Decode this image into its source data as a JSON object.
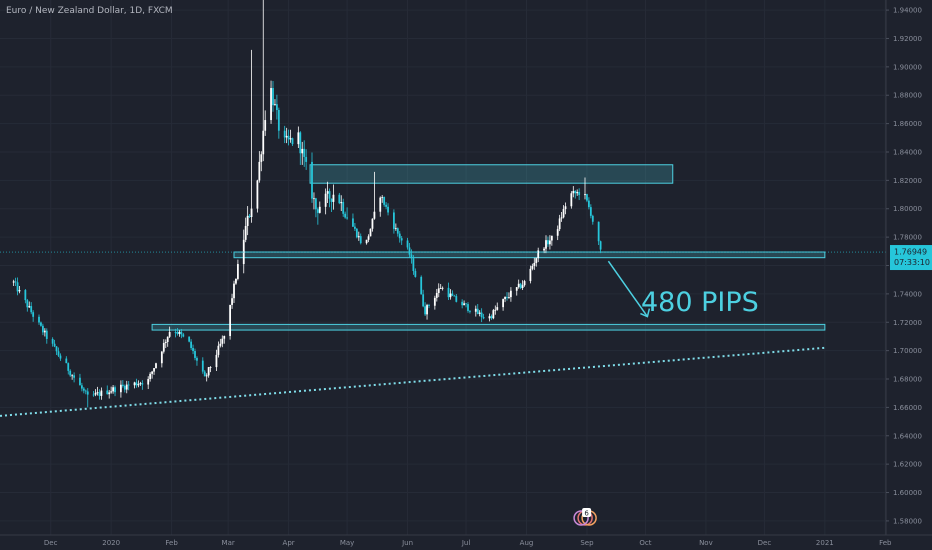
{
  "symbol": {
    "title": "Euro / New Zealand Dollar, 1D, FXCM"
  },
  "price_label": {
    "price": "1.76949",
    "countdown": "07:33:10"
  },
  "annotation": {
    "text": "480 PIPS"
  },
  "notification_badge": {
    "count": "6"
  },
  "colors": {
    "background": "#1e222d",
    "candle_up": "#ffffff",
    "candle_down": "#26c6da",
    "zone": "#4dd0e1",
    "axis_text": "#8a8f9c",
    "label_bg": "#26c6da"
  },
  "chart_data": {
    "type": "candlestick",
    "title": "Euro / New Zealand Dollar, 1D, FXCM",
    "y_axis": {
      "ticks": [
        "1.94000",
        "1.92000",
        "1.90000",
        "1.88000",
        "1.86000",
        "1.84000",
        "1.82000",
        "1.80000",
        "1.78000",
        "1.76000",
        "1.74000",
        "1.72000",
        "1.70000",
        "1.68000",
        "1.66000",
        "1.64000",
        "1.62000",
        "1.60000",
        "1.58000"
      ],
      "range": [
        1.575,
        1.945
      ]
    },
    "x_axis": {
      "ticks": [
        "Dec",
        "2020",
        "Feb",
        "Mar",
        "Apr",
        "May",
        "Jun",
        "Jul",
        "Aug",
        "Sep",
        "Oct",
        "Nov",
        "Dec",
        "2021",
        "Feb"
      ]
    },
    "last_price": 1.76949,
    "price_path": [
      {
        "t": "2019-11-12",
        "p": 1.748
      },
      {
        "t": "2019-11-25",
        "p": 1.718
      },
      {
        "t": "2019-12-05",
        "p": 1.697
      },
      {
        "t": "2019-12-20",
        "p": 1.667
      },
      {
        "t": "2020-01-05",
        "p": 1.674
      },
      {
        "t": "2020-01-20",
        "p": 1.679
      },
      {
        "t": "2020-02-01",
        "p": 1.717
      },
      {
        "t": "2020-02-10",
        "p": 1.705
      },
      {
        "t": "2020-02-18",
        "p": 1.68
      },
      {
        "t": "2020-02-28",
        "p": 1.71
      },
      {
        "t": "2020-03-09",
        "p": 1.78
      },
      {
        "t": "2020-03-16",
        "p": 1.82
      },
      {
        "t": "2020-03-22",
        "p": 1.89
      },
      {
        "t": "2020-03-29",
        "p": 1.845
      },
      {
        "t": "2020-04-06",
        "p": 1.85
      },
      {
        "t": "2020-04-15",
        "p": 1.8
      },
      {
        "t": "2020-04-25",
        "p": 1.812
      },
      {
        "t": "2020-05-03",
        "p": 1.79
      },
      {
        "t": "2020-05-10",
        "p": 1.772
      },
      {
        "t": "2020-05-18",
        "p": 1.81
      },
      {
        "t": "2020-05-26",
        "p": 1.785
      },
      {
        "t": "2020-06-02",
        "p": 1.768
      },
      {
        "t": "2020-06-10",
        "p": 1.728
      },
      {
        "t": "2020-06-18",
        "p": 1.745
      },
      {
        "t": "2020-06-26",
        "p": 1.735
      },
      {
        "t": "2020-07-05",
        "p": 1.728
      },
      {
        "t": "2020-07-12",
        "p": 1.722
      },
      {
        "t": "2020-07-22",
        "p": 1.738
      },
      {
        "t": "2020-07-31",
        "p": 1.748
      },
      {
        "t": "2020-08-08",
        "p": 1.772
      },
      {
        "t": "2020-08-15",
        "p": 1.78
      },
      {
        "t": "2020-08-23",
        "p": 1.81
      },
      {
        "t": "2020-08-30",
        "p": 1.812
      },
      {
        "t": "2020-09-03",
        "p": 1.797
      },
      {
        "t": "2020-09-08",
        "p": 1.7695
      }
    ],
    "extremes": [
      {
        "t": "2019-12-20",
        "low": 1.66
      },
      {
        "t": "2020-03-19",
        "high": 1.951
      },
      {
        "t": "2020-03-13",
        "high": 1.912
      },
      {
        "t": "2020-05-15",
        "high": 1.826
      },
      {
        "t": "2020-07-12",
        "low": 1.715
      },
      {
        "t": "2020-08-31",
        "high": 1.822
      }
    ],
    "zones": [
      {
        "from": "2020-04-12",
        "to": "2020-10-15",
        "low": 1.818,
        "high": 1.831
      },
      {
        "from": "2020-03-04",
        "to": "2021-01-01",
        "low": 1.7655,
        "high": 1.7695
      },
      {
        "from": "2020-01-22",
        "to": "2021-01-01",
        "low": 1.7145,
        "high": 1.7185
      }
    ],
    "trendline": {
      "start": {
        "t": "2019-11-05",
        "p": 1.654
      },
      "end": {
        "t": "2021-01-01",
        "p": 1.702
      },
      "style": "dotted"
    },
    "arrow": {
      "from": {
        "t": "2020-09-12",
        "p": 1.763
      },
      "to": {
        "t": "2020-10-02",
        "p": 1.724
      }
    },
    "grid": true
  }
}
